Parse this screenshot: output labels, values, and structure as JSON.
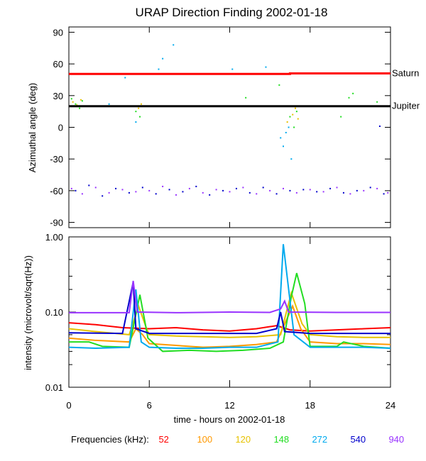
{
  "chart_data": [
    {
      "type": "scatter",
      "title": "URAP Direction Finding  2002-01-18",
      "xlabel": "",
      "ylabel": "Azimuthal angle (deg)",
      "xlim": [
        0,
        24
      ],
      "ylim": [
        -95,
        95
      ],
      "yticks": [
        90,
        60,
        30,
        0,
        -30,
        -60,
        -90
      ],
      "ytick_labels": [
        "90",
        "60",
        "30",
        "0",
        "-30",
        "-60",
        "-90"
      ],
      "reference_lines": [
        {
          "name": "Saturn",
          "color": "#ff0000",
          "points": [
            [
              0,
              50.5
            ],
            [
              16.5,
              50.5
            ],
            [
              16.5,
              51
            ],
            [
              24,
              51
            ]
          ]
        },
        {
          "name": "Jupiter",
          "color": "#000000",
          "points": [
            [
              0,
              20
            ],
            [
              24,
              20
            ]
          ]
        }
      ],
      "series": [
        {
          "name": "52",
          "color": "#ff0000",
          "values": []
        },
        {
          "name": "100",
          "color": "#ff9900",
          "values": []
        },
        {
          "name": "120",
          "color": "#e6c200",
          "values": [
            [
              0.3,
              24
            ],
            [
              0.6,
              21
            ],
            [
              0.9,
              26
            ],
            [
              5.2,
              18
            ],
            [
              5.4,
              22
            ],
            [
              16.3,
              5
            ],
            [
              16.7,
              12
            ],
            [
              16.9,
              18
            ],
            [
              17.1,
              8
            ]
          ]
        },
        {
          "name": "148",
          "color": "#22dd22",
          "values": [
            [
              0.2,
              27
            ],
            [
              0.5,
              22
            ],
            [
              0.8,
              18
            ],
            [
              1.0,
              25
            ],
            [
              5.0,
              15
            ],
            [
              5.3,
              10
            ],
            [
              9.5,
              20
            ],
            [
              13.2,
              28
            ],
            [
              15.7,
              40
            ],
            [
              16.5,
              10
            ],
            [
              16.8,
              0
            ],
            [
              17.0,
              15
            ],
            [
              20.3,
              10
            ],
            [
              20.6,
              20
            ],
            [
              20.9,
              28
            ],
            [
              21.2,
              32
            ],
            [
              23.0,
              24
            ]
          ]
        },
        {
          "name": "272",
          "color": "#00aaee",
          "values": [
            [
              3.0,
              22
            ],
            [
              4.2,
              47
            ],
            [
              5.0,
              5
            ],
            [
              6.7,
              55
            ],
            [
              7.0,
              65
            ],
            [
              7.8,
              78
            ],
            [
              12.2,
              55
            ],
            [
              14.7,
              57
            ],
            [
              15.8,
              -10
            ],
            [
              16.0,
              -18
            ],
            [
              16.2,
              -5
            ],
            [
              16.4,
              0
            ],
            [
              16.6,
              -30
            ]
          ]
        },
        {
          "name": "540",
          "color": "#0000cc",
          "values": [
            [
              0.5,
              -60
            ],
            [
              1.5,
              -55
            ],
            [
              2.5,
              -65
            ],
            [
              3.5,
              -58
            ],
            [
              4.5,
              -62
            ],
            [
              5.5,
              -57
            ],
            [
              6.5,
              -63
            ],
            [
              7.5,
              -59
            ],
            [
              8.5,
              -61
            ],
            [
              9.5,
              -56
            ],
            [
              10.5,
              -64
            ],
            [
              11.5,
              -60
            ],
            [
              12.5,
              -58
            ],
            [
              13.5,
              -62
            ],
            [
              14.5,
              -57
            ],
            [
              15.5,
              -63
            ],
            [
              16.5,
              -60
            ],
            [
              17.5,
              -59
            ],
            [
              18.5,
              -61
            ],
            [
              19.5,
              -58
            ],
            [
              20.5,
              -62
            ],
            [
              21.5,
              -60
            ],
            [
              22.5,
              -57
            ],
            [
              23.5,
              -63
            ],
            [
              23.2,
              1
            ]
          ]
        },
        {
          "name": "940",
          "color": "#9933ff",
          "values": [
            [
              0.2,
              -58
            ],
            [
              1.0,
              -63
            ],
            [
              2.0,
              -57
            ],
            [
              3.0,
              -62
            ],
            [
              4.0,
              -59
            ],
            [
              5.0,
              -61
            ],
            [
              6.0,
              -60
            ],
            [
              7.0,
              -56
            ],
            [
              8.0,
              -64
            ],
            [
              9.0,
              -58
            ],
            [
              10.0,
              -62
            ],
            [
              11.0,
              -59
            ],
            [
              12.0,
              -61
            ],
            [
              13.0,
              -57
            ],
            [
              14.0,
              -63
            ],
            [
              15.0,
              -60
            ],
            [
              16.0,
              -58
            ],
            [
              17.0,
              -62
            ],
            [
              18.0,
              -59
            ],
            [
              19.0,
              -61
            ],
            [
              20.0,
              -57
            ],
            [
              21.0,
              -63
            ],
            [
              22.0,
              -60
            ],
            [
              23.0,
              -58
            ],
            [
              23.8,
              -62
            ]
          ]
        }
      ]
    },
    {
      "type": "line",
      "title": "",
      "xlabel": "time - hours on 2002-01-18",
      "ylabel": "intensity (microvolt/sqrt(Hz))",
      "yscale": "log",
      "xlim": [
        0,
        24
      ],
      "ylim": [
        0.01,
        1.0
      ],
      "xticks": [
        0,
        6,
        12,
        18,
        24
      ],
      "xtick_labels": [
        "0",
        "6",
        "12",
        "18",
        "24"
      ],
      "yticks": [
        1.0,
        0.1,
        0.01
      ],
      "ytick_labels": [
        "1.00",
        "0.10",
        "0.01"
      ],
      "series": [
        {
          "name": "52",
          "color": "#ff0000",
          "values": [
            [
              0,
              0.072
            ],
            [
              2,
              0.068
            ],
            [
              4,
              0.062
            ],
            [
              6,
              0.06
            ],
            [
              8,
              0.062
            ],
            [
              10,
              0.058
            ],
            [
              12,
              0.056
            ],
            [
              14,
              0.06
            ],
            [
              15.5,
              0.066
            ],
            [
              16.5,
              0.058
            ],
            [
              18,
              0.056
            ],
            [
              20,
              0.058
            ],
            [
              22,
              0.06
            ],
            [
              24,
              0.062
            ]
          ]
        },
        {
          "name": "100",
          "color": "#ff9900",
          "values": [
            [
              0,
              0.045
            ],
            [
              2,
              0.042
            ],
            [
              4.5,
              0.04
            ],
            [
              5.0,
              0.06
            ],
            [
              5.5,
              0.05
            ],
            [
              6,
              0.038
            ],
            [
              8,
              0.036
            ],
            [
              10,
              0.034
            ],
            [
              12,
              0.035
            ],
            [
              14,
              0.037
            ],
            [
              15.5,
              0.04
            ],
            [
              16.7,
              0.12
            ],
            [
              17.3,
              0.06
            ],
            [
              18,
              0.04
            ],
            [
              20,
              0.038
            ],
            [
              22,
              0.038
            ],
            [
              24,
              0.037
            ]
          ]
        },
        {
          "name": "120",
          "color": "#e6c200",
          "values": [
            [
              0,
              0.06
            ],
            [
              2,
              0.055
            ],
            [
              4.5,
              0.05
            ],
            [
              5.2,
              0.12
            ],
            [
              5.8,
              0.06
            ],
            [
              6,
              0.05
            ],
            [
              8,
              0.048
            ],
            [
              10,
              0.047
            ],
            [
              12,
              0.046
            ],
            [
              14,
              0.047
            ],
            [
              15.8,
              0.05
            ],
            [
              16.6,
              0.18
            ],
            [
              17.4,
              0.07
            ],
            [
              18,
              0.05
            ],
            [
              20,
              0.047
            ],
            [
              22,
              0.046
            ],
            [
              24,
              0.046
            ]
          ]
        },
        {
          "name": "148",
          "color": "#22dd22",
          "values": [
            [
              0,
              0.04
            ],
            [
              1.5,
              0.04
            ],
            [
              2.5,
              0.035
            ],
            [
              4.5,
              0.034
            ],
            [
              5.3,
              0.17
            ],
            [
              5.9,
              0.045
            ],
            [
              7,
              0.03
            ],
            [
              9,
              0.031
            ],
            [
              11,
              0.03
            ],
            [
              13,
              0.031
            ],
            [
              15,
              0.033
            ],
            [
              16,
              0.04
            ],
            [
              16.6,
              0.16
            ],
            [
              17.0,
              0.33
            ],
            [
              17.6,
              0.13
            ],
            [
              18,
              0.035
            ],
            [
              20,
              0.035
            ],
            [
              20.5,
              0.04
            ],
            [
              22,
              0.035
            ],
            [
              24,
              0.033
            ]
          ]
        },
        {
          "name": "272",
          "color": "#00aaee",
          "values": [
            [
              0,
              0.034
            ],
            [
              2,
              0.033
            ],
            [
              4.5,
              0.034
            ],
            [
              5.0,
              0.2
            ],
            [
              5.4,
              0.04
            ],
            [
              6,
              0.034
            ],
            [
              8,
              0.033
            ],
            [
              10,
              0.033
            ],
            [
              12,
              0.034
            ],
            [
              14,
              0.034
            ],
            [
              15.6,
              0.04
            ],
            [
              16.0,
              0.8
            ],
            [
              16.4,
              0.2
            ],
            [
              16.8,
              0.05
            ],
            [
              18,
              0.034
            ],
            [
              20,
              0.034
            ],
            [
              22,
              0.034
            ],
            [
              24,
              0.033
            ]
          ]
        },
        {
          "name": "540",
          "color": "#0000cc",
          "values": [
            [
              0,
              0.053
            ],
            [
              4,
              0.052
            ],
            [
              4.8,
              0.25
            ],
            [
              5.0,
              0.06
            ],
            [
              6,
              0.052
            ],
            [
              10,
              0.052
            ],
            [
              12,
              0.052
            ],
            [
              14,
              0.052
            ],
            [
              15.5,
              0.06
            ],
            [
              15.8,
              0.1
            ],
            [
              16.1,
              0.055
            ],
            [
              18,
              0.052
            ],
            [
              22,
              0.052
            ],
            [
              24,
              0.052
            ]
          ]
        },
        {
          "name": "940",
          "color": "#9933ff",
          "values": [
            [
              0,
              0.098
            ],
            [
              4.5,
              0.098
            ],
            [
              4.8,
              0.26
            ],
            [
              5.1,
              0.1
            ],
            [
              8,
              0.098
            ],
            [
              12,
              0.1
            ],
            [
              15,
              0.099
            ],
            [
              15.8,
              0.11
            ],
            [
              16.1,
              0.14
            ],
            [
              16.4,
              0.1
            ],
            [
              20,
              0.099
            ],
            [
              24,
              0.099
            ]
          ]
        }
      ]
    }
  ],
  "legend": {
    "label": "Frequencies (kHz):",
    "items": [
      {
        "name": "52",
        "color": "#ff0000"
      },
      {
        "name": "100",
        "color": "#ff9900"
      },
      {
        "name": "120",
        "color": "#e6c200"
      },
      {
        "name": "148",
        "color": "#22dd22"
      },
      {
        "name": "272",
        "color": "#00aaee"
      },
      {
        "name": "540",
        "color": "#0000cc"
      },
      {
        "name": "940",
        "color": "#9933ff"
      }
    ]
  }
}
